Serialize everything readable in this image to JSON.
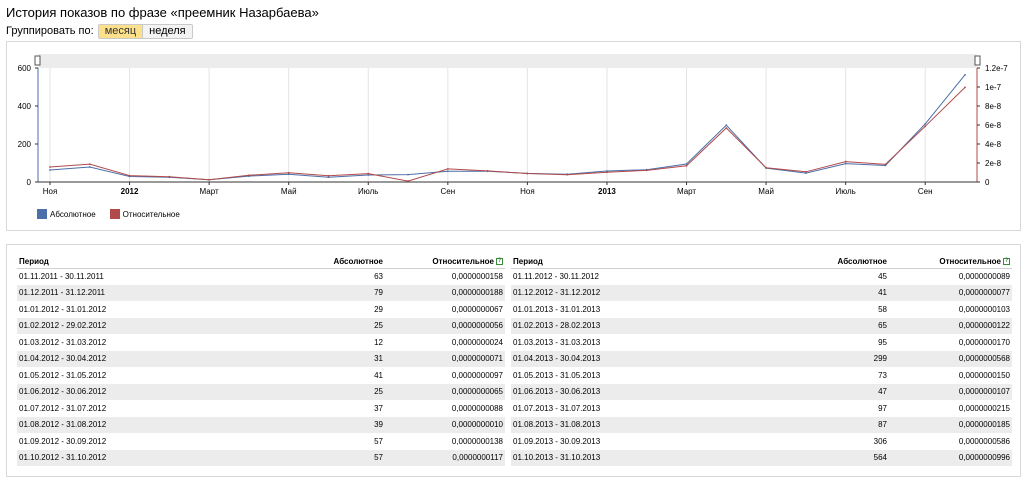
{
  "page": {
    "title": "История показов по фразе «преемник Назарбаева»",
    "group_label": "Группировать по:",
    "group_options": [
      "месяц",
      "неделя"
    ],
    "group_selected": "месяц"
  },
  "legend": {
    "absolute": {
      "label": "Абсолютное",
      "color": "#4b6fa9"
    },
    "relative": {
      "label": "Относительное",
      "color": "#b14a4a"
    }
  },
  "chart_data": {
    "type": "line",
    "x": [
      "11.2011",
      "12.2011",
      "01.2012",
      "02.2012",
      "03.2012",
      "04.2012",
      "05.2012",
      "06.2012",
      "07.2012",
      "08.2012",
      "09.2012",
      "10.2012",
      "11.2012",
      "12.2012",
      "01.2013",
      "02.2013",
      "03.2013",
      "04.2013",
      "05.2013",
      "06.2013",
      "07.2013",
      "08.2013",
      "09.2013",
      "10.2013"
    ],
    "x_tick_labels": [
      "Ноя",
      "2012",
      "Март",
      "Май",
      "Июль",
      "Сен",
      "Ноя",
      "2013",
      "Март",
      "Май",
      "Июль",
      "Сен"
    ],
    "y_left_ticks": [
      "0",
      "200",
      "400",
      "600"
    ],
    "y_right_ticks": [
      "0",
      "2e-8",
      "4e-8",
      "6e-8",
      "8e-8",
      "1e-7",
      "1.2e-7"
    ],
    "ylim_left": [
      0,
      600
    ],
    "ylim_right": [
      0,
      1.2e-07
    ],
    "series": [
      {
        "name": "Абсолютное",
        "axis": "left",
        "color": "#4b6fa9",
        "values": [
          63,
          79,
          29,
          25,
          12,
          31,
          41,
          25,
          37,
          39,
          57,
          57,
          45,
          41,
          58,
          65,
          95,
          299,
          73,
          47,
          97,
          87,
          306,
          564
        ]
      },
      {
        "name": "Относительное",
        "axis": "right",
        "color": "#b14a4a",
        "values": [
          1.58e-08,
          1.88e-08,
          6.7e-09,
          5.6e-09,
          2.4e-09,
          7.1e-09,
          9.7e-09,
          6.5e-09,
          8.8e-09,
          1e-09,
          1.38e-08,
          1.17e-08,
          8.9e-09,
          7.7e-09,
          1.03e-08,
          1.22e-08,
          1.7e-08,
          5.68e-08,
          1.5e-08,
          1.07e-08,
          2.15e-08,
          1.85e-08,
          5.86e-08,
          9.96e-08
        ]
      }
    ],
    "grid": true,
    "legend_position": "bottom-left"
  },
  "table": {
    "headers": {
      "period": "Период",
      "absolute": "Абсолютное",
      "relative": "Относительное"
    },
    "left": [
      [
        "01.11.2011 - 30.11.2011",
        "63",
        "0,0000000158"
      ],
      [
        "01.12.2011 - 31.12.2011",
        "79",
        "0,0000000188"
      ],
      [
        "01.01.2012 - 31.01.2012",
        "29",
        "0,0000000067"
      ],
      [
        "01.02.2012 - 29.02.2012",
        "25",
        "0,0000000056"
      ],
      [
        "01.03.2012 - 31.03.2012",
        "12",
        "0,0000000024"
      ],
      [
        "01.04.2012 - 30.04.2012",
        "31",
        "0,0000000071"
      ],
      [
        "01.05.2012 - 31.05.2012",
        "41",
        "0,0000000097"
      ],
      [
        "01.06.2012 - 30.06.2012",
        "25",
        "0,0000000065"
      ],
      [
        "01.07.2012 - 31.07.2012",
        "37",
        "0,0000000088"
      ],
      [
        "01.08.2012 - 31.08.2012",
        "39",
        "0,0000000010"
      ],
      [
        "01.09.2012 - 30.09.2012",
        "57",
        "0,0000000138"
      ],
      [
        "01.10.2012 - 31.10.2012",
        "57",
        "0,0000000117"
      ]
    ],
    "right": [
      [
        "01.11.2012 - 30.11.2012",
        "45",
        "0,0000000089"
      ],
      [
        "01.12.2012 - 31.12.2012",
        "41",
        "0,0000000077"
      ],
      [
        "01.01.2013 - 31.01.2013",
        "58",
        "0,0000000103"
      ],
      [
        "01.02.2013 - 28.02.2013",
        "65",
        "0,0000000122"
      ],
      [
        "01.03.2013 - 31.03.2013",
        "95",
        "0,0000000170"
      ],
      [
        "01.04.2013 - 30.04.2013",
        "299",
        "0,0000000568"
      ],
      [
        "01.05.2013 - 31.05.2013",
        "73",
        "0,0000000150"
      ],
      [
        "01.06.2013 - 30.06.2013",
        "47",
        "0,0000000107"
      ],
      [
        "01.07.2013 - 31.07.2013",
        "97",
        "0,0000000215"
      ],
      [
        "01.08.2013 - 31.08.2013",
        "87",
        "0,0000000185"
      ],
      [
        "01.09.2013 - 30.09.2013",
        "306",
        "0,0000000586"
      ],
      [
        "01.10.2013 - 31.10.2013",
        "564",
        "0,0000000996"
      ]
    ]
  }
}
